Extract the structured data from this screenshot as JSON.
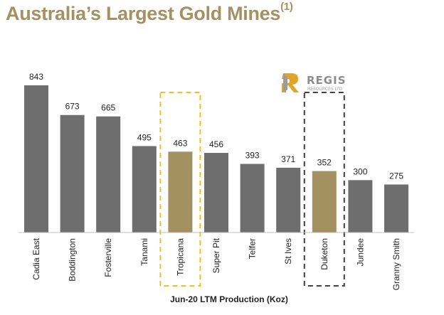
{
  "title": {
    "text": "Australia’s Largest Gold Mines",
    "footnote": "(1)"
  },
  "logo": {
    "name": "REGIS",
    "subtitle": "RESOURCES LTD"
  },
  "colors": {
    "title": "#A39161",
    "default_bar": "#6E6E6E",
    "highlight_bar": "#A39161",
    "tropicana_box": "#F0C21F",
    "duketon_box": "#404040",
    "logo_gold": "#E0A52A"
  },
  "chart_data": {
    "type": "bar",
    "xlabel": "Jun-20 LTM Production (Koz)",
    "ylabel": "",
    "ylim": [
      0,
      843
    ],
    "categories": [
      "Cadia East",
      "Boddington",
      "Fosterville",
      "Tanami",
      "Tropicana",
      "Super Pit",
      "Telfer",
      "St Ives",
      "Duketon",
      "Jundee",
      "Granny Smith"
    ],
    "values": [
      843,
      673,
      665,
      495,
      463,
      456,
      393,
      371,
      352,
      300,
      275
    ],
    "highlighted": [
      "Tropicana",
      "Duketon"
    ],
    "data_labels": true
  }
}
